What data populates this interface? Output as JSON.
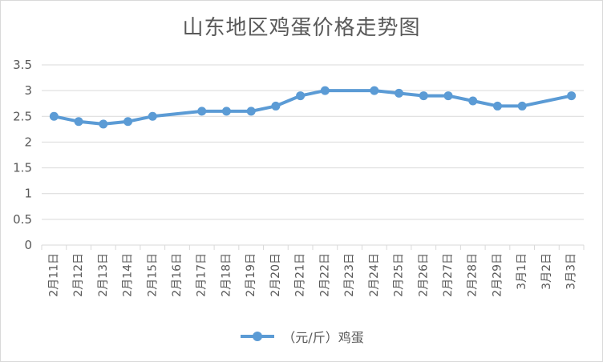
{
  "chart_data": {
    "type": "line",
    "title": "山东地区鸡蛋价格走势图",
    "xlabel": "",
    "ylabel": "",
    "ylim": [
      0,
      3.5
    ],
    "yticks": [
      "0",
      "0.5",
      "1",
      "1.5",
      "2",
      "2.5",
      "3",
      "3.5"
    ],
    "grid": true,
    "legend_position": "bottom",
    "categories": [
      "2月11日",
      "2月12日",
      "2月13日",
      "2月14日",
      "2月15日",
      "2月16日",
      "2月17日",
      "2月18日",
      "2月19日",
      "2月20日",
      "2月21日",
      "2月22日",
      "2月23日",
      "2月24日",
      "2月25日",
      "2月26日",
      "2月27日",
      "2月28日",
      "2月29日",
      "3月1日",
      "3月2日",
      "3月3日"
    ],
    "series": [
      {
        "name": "（元/斤）鸡蛋",
        "color": "#5b9bd5",
        "values": [
          2.5,
          2.4,
          2.35,
          2.4,
          2.5,
          null,
          2.6,
          2.6,
          2.6,
          2.7,
          2.9,
          3.0,
          null,
          3.0,
          2.95,
          2.9,
          2.9,
          2.8,
          2.7,
          2.7,
          null,
          2.9
        ]
      }
    ]
  }
}
